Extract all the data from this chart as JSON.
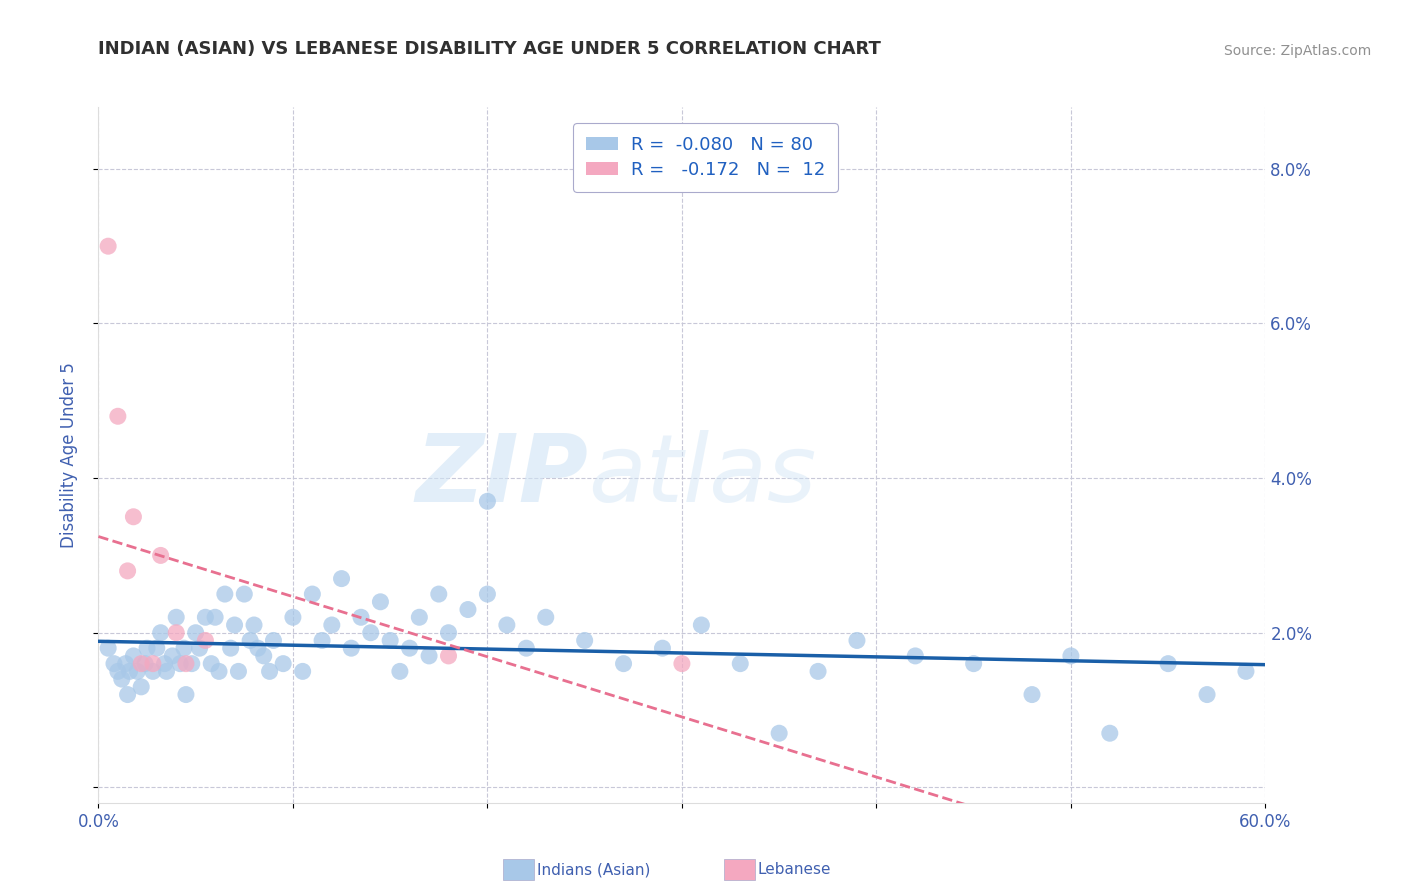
{
  "title": "INDIAN (ASIAN) VS LEBANESE DISABILITY AGE UNDER 5 CORRELATION CHART",
  "source": "Source: ZipAtlas.com",
  "ylabel": "Disability Age Under 5",
  "xlim": [
    0.0,
    0.6
  ],
  "ylim": [
    -0.002,
    0.088
  ],
  "yticks": [
    0.0,
    0.02,
    0.04,
    0.06,
    0.08
  ],
  "ytick_labels": [
    "",
    "2.0%",
    "4.0%",
    "6.0%",
    "8.0%"
  ],
  "xticks": [
    0.0,
    0.1,
    0.2,
    0.3,
    0.4,
    0.5,
    0.6
  ],
  "xtick_labels": [
    "0.0%",
    "",
    "",
    "",
    "",
    "",
    "60.0%"
  ],
  "legend_line1": "R =  -0.080   N = 80",
  "legend_line2": "R =   -0.172   N =  12",
  "color_indian": "#a8c8e8",
  "color_lebanese": "#f4a8c0",
  "color_line_indian": "#1a5fa8",
  "color_line_lebanese": "#e87090",
  "color_grid": "#c8c8d8",
  "color_title": "#303030",
  "color_source": "#909090",
  "color_axis_label": "#4060b0",
  "color_legend_blue": "#2060c0",
  "color_legend_pink": "#e03060",
  "watermark_zip": "ZIP",
  "watermark_atlas": "atlas",
  "background_color": "#ffffff",
  "indian_x": [
    0.005,
    0.008,
    0.01,
    0.012,
    0.014,
    0.015,
    0.016,
    0.018,
    0.02,
    0.022,
    0.024,
    0.025,
    0.028,
    0.03,
    0.032,
    0.034,
    0.035,
    0.038,
    0.04,
    0.042,
    0.044,
    0.045,
    0.048,
    0.05,
    0.052,
    0.055,
    0.058,
    0.06,
    0.062,
    0.065,
    0.068,
    0.07,
    0.072,
    0.075,
    0.078,
    0.08,
    0.082,
    0.085,
    0.088,
    0.09,
    0.095,
    0.1,
    0.105,
    0.11,
    0.115,
    0.12,
    0.125,
    0.13,
    0.135,
    0.14,
    0.145,
    0.15,
    0.155,
    0.16,
    0.165,
    0.17,
    0.175,
    0.18,
    0.19,
    0.2,
    0.21,
    0.22,
    0.23,
    0.25,
    0.27,
    0.29,
    0.31,
    0.33,
    0.35,
    0.37,
    0.39,
    0.42,
    0.45,
    0.48,
    0.5,
    0.52,
    0.55,
    0.57,
    0.59,
    0.2
  ],
  "indian_y": [
    0.018,
    0.016,
    0.015,
    0.014,
    0.016,
    0.012,
    0.015,
    0.017,
    0.015,
    0.013,
    0.016,
    0.018,
    0.015,
    0.018,
    0.02,
    0.016,
    0.015,
    0.017,
    0.022,
    0.016,
    0.018,
    0.012,
    0.016,
    0.02,
    0.018,
    0.022,
    0.016,
    0.022,
    0.015,
    0.025,
    0.018,
    0.021,
    0.015,
    0.025,
    0.019,
    0.021,
    0.018,
    0.017,
    0.015,
    0.019,
    0.016,
    0.022,
    0.015,
    0.025,
    0.019,
    0.021,
    0.027,
    0.018,
    0.022,
    0.02,
    0.024,
    0.019,
    0.015,
    0.018,
    0.022,
    0.017,
    0.025,
    0.02,
    0.023,
    0.037,
    0.021,
    0.018,
    0.022,
    0.019,
    0.016,
    0.018,
    0.021,
    0.016,
    0.007,
    0.015,
    0.019,
    0.017,
    0.016,
    0.012,
    0.017,
    0.007,
    0.016,
    0.012,
    0.015,
    0.025
  ],
  "lebanese_x": [
    0.005,
    0.01,
    0.015,
    0.018,
    0.022,
    0.028,
    0.032,
    0.04,
    0.045,
    0.055,
    0.18,
    0.3
  ],
  "lebanese_y": [
    0.07,
    0.048,
    0.028,
    0.035,
    0.016,
    0.016,
    0.03,
    0.02,
    0.016,
    0.019,
    0.017,
    0.016
  ]
}
